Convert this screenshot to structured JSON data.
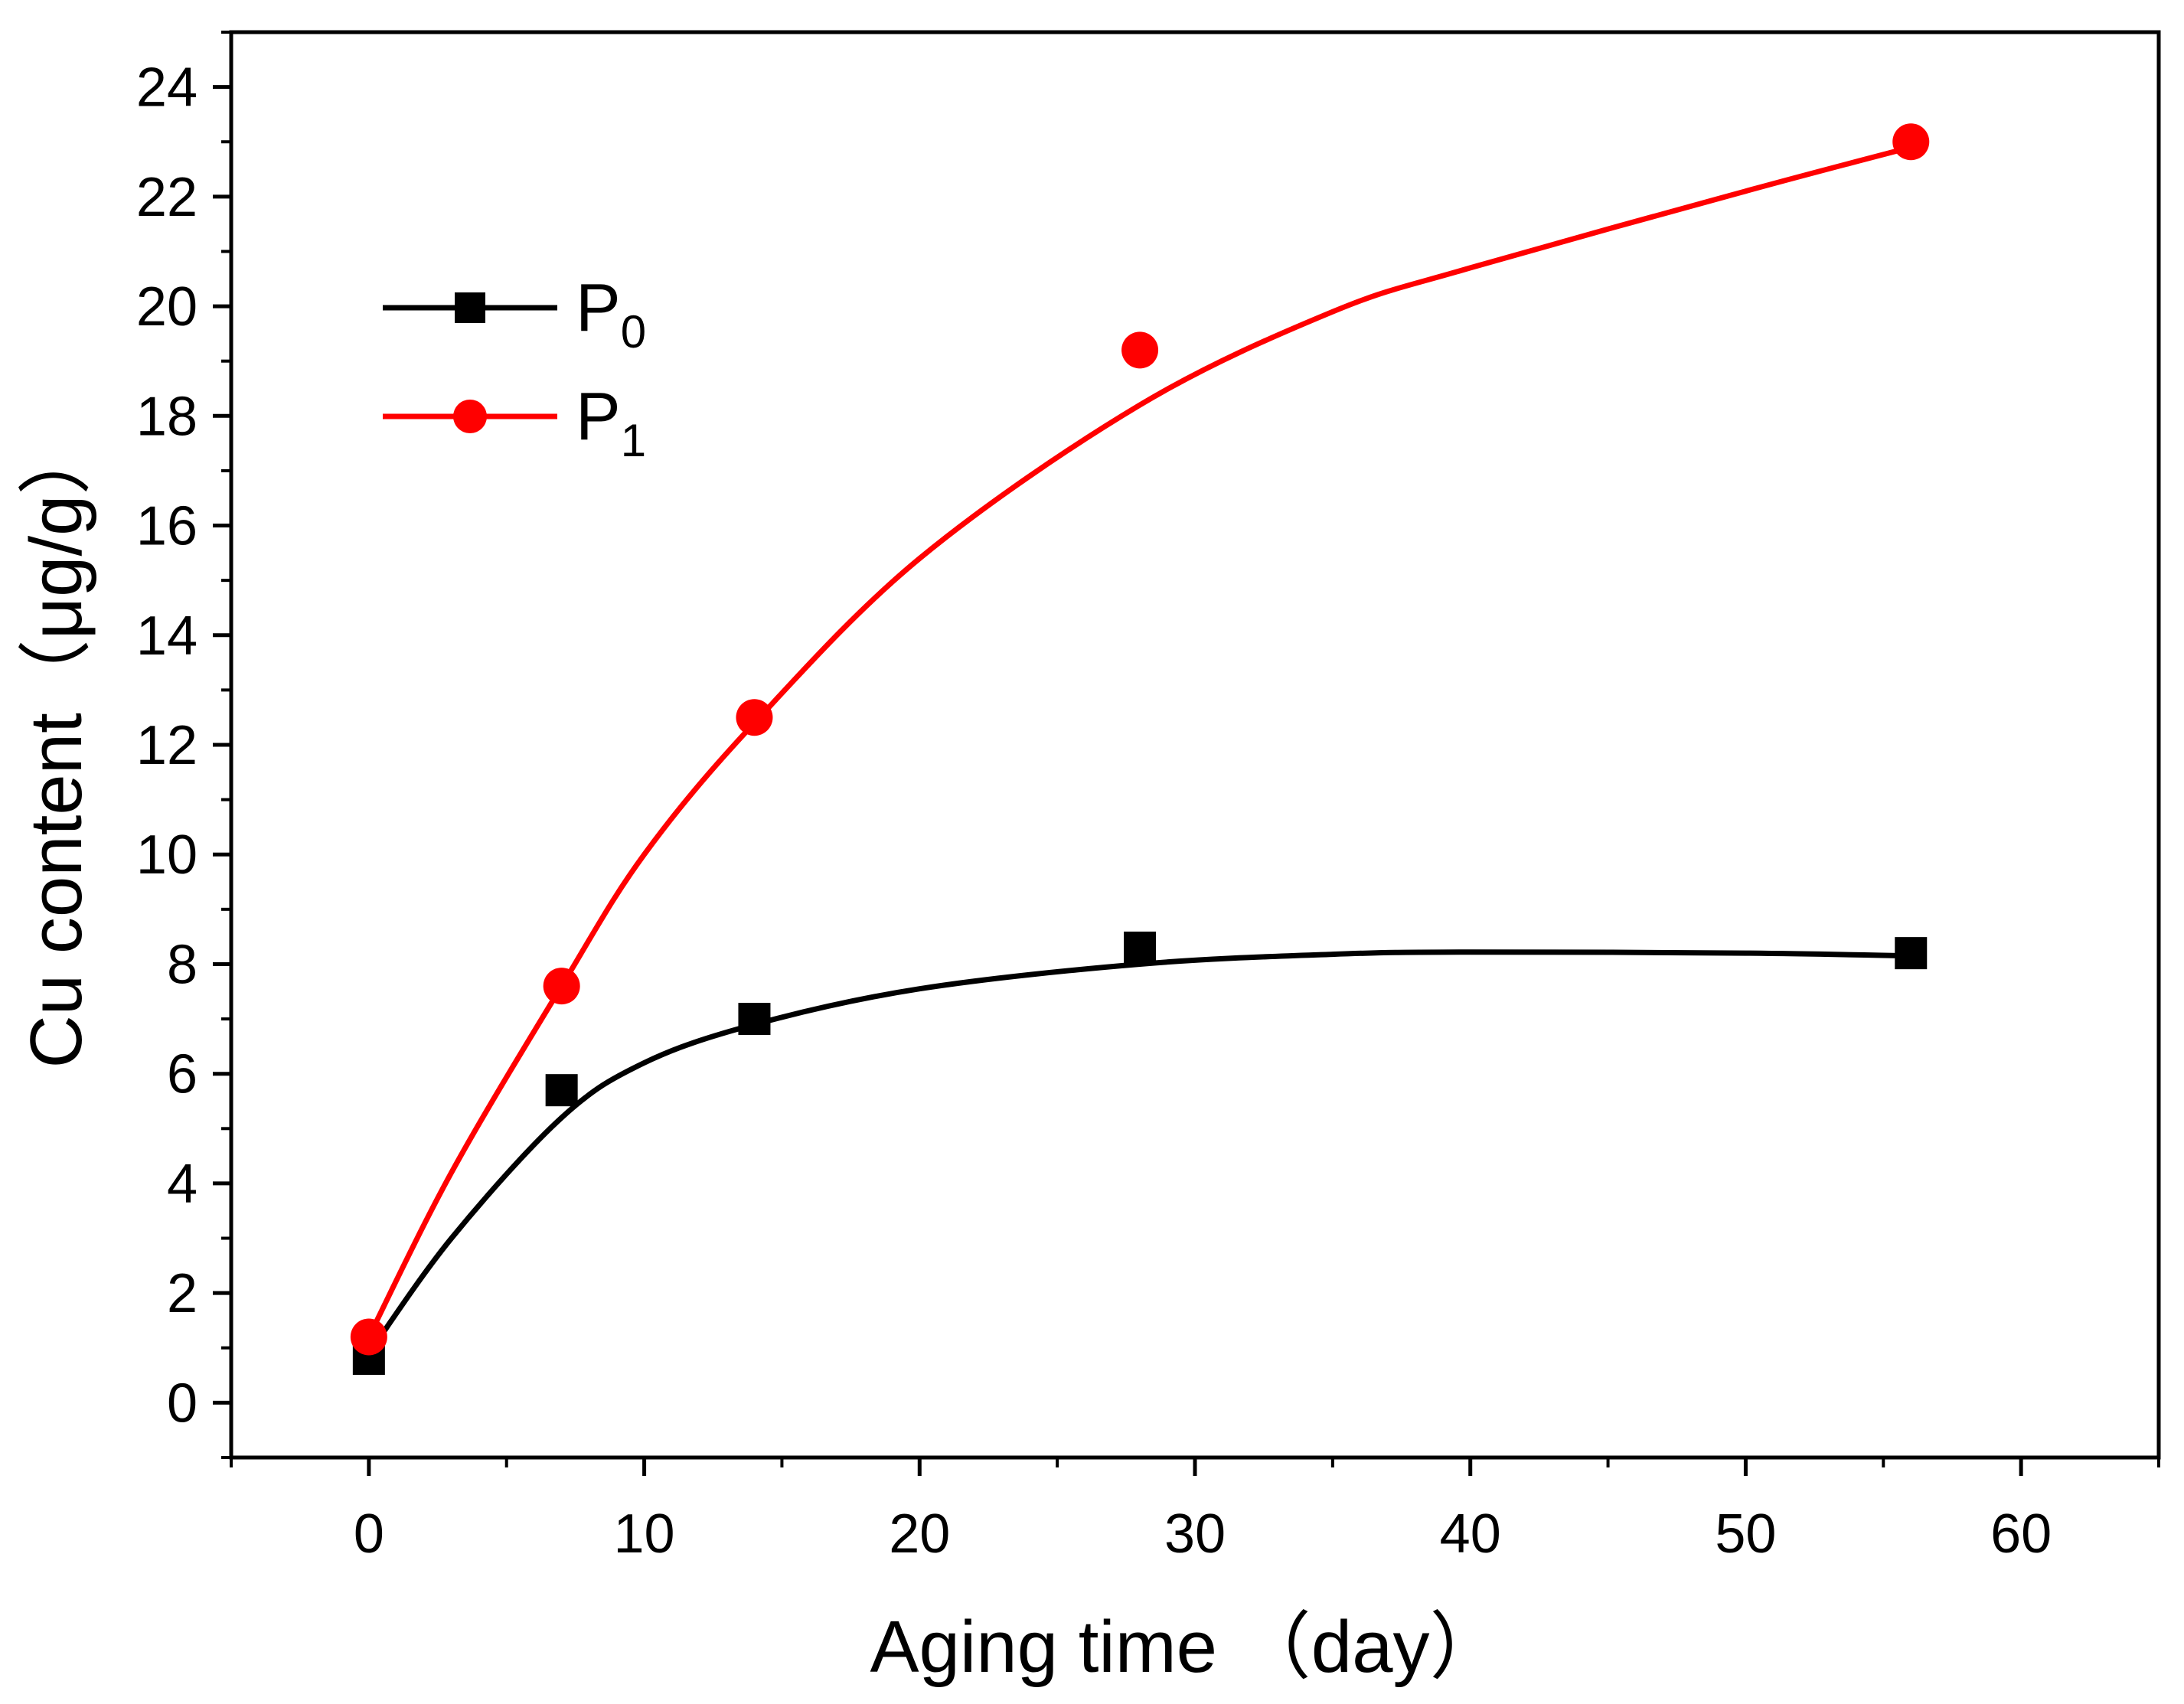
{
  "chart_data": {
    "type": "scatter",
    "title": "",
    "xlabel": "Aging time （day）",
    "ylabel": "Cu content（μg/g）",
    "xlim": [
      -5,
      65
    ],
    "ylim": [
      -1,
      25
    ],
    "xticks": [
      0,
      10,
      20,
      30,
      40,
      50,
      60
    ],
    "yticks": [
      0,
      2,
      4,
      6,
      8,
      10,
      12,
      14,
      16,
      18,
      20,
      22,
      24
    ],
    "grid": false,
    "legend_position": "top-left",
    "series": [
      {
        "name": "P0",
        "label_main": "P",
        "label_sub": "0",
        "marker": "square",
        "color": "#000000",
        "x": [
          0,
          7,
          14,
          28,
          56
        ],
        "y": [
          0.8,
          5.7,
          7.0,
          8.3,
          8.2
        ],
        "fit_x": [
          0,
          3,
          7,
          10,
          14,
          20,
          28,
          35,
          40,
          50,
          56
        ],
        "fit_y": [
          0.9,
          3.0,
          5.2,
          6.2,
          6.9,
          7.55,
          8.0,
          8.18,
          8.22,
          8.2,
          8.15
        ]
      },
      {
        "name": "P1",
        "label_main": "P",
        "label_sub": "1",
        "marker": "circle",
        "color": "#ff0000",
        "x": [
          0,
          7,
          14,
          28,
          56
        ],
        "y": [
          1.2,
          7.6,
          12.5,
          19.2,
          23.0
        ],
        "fit_x": [
          0,
          3,
          7,
          10,
          14,
          20,
          28,
          35,
          40,
          50,
          56
        ],
        "fit_y": [
          1.2,
          4.2,
          7.6,
          10.0,
          12.4,
          15.4,
          18.2,
          19.9,
          20.7,
          22.1,
          22.9
        ]
      }
    ]
  }
}
